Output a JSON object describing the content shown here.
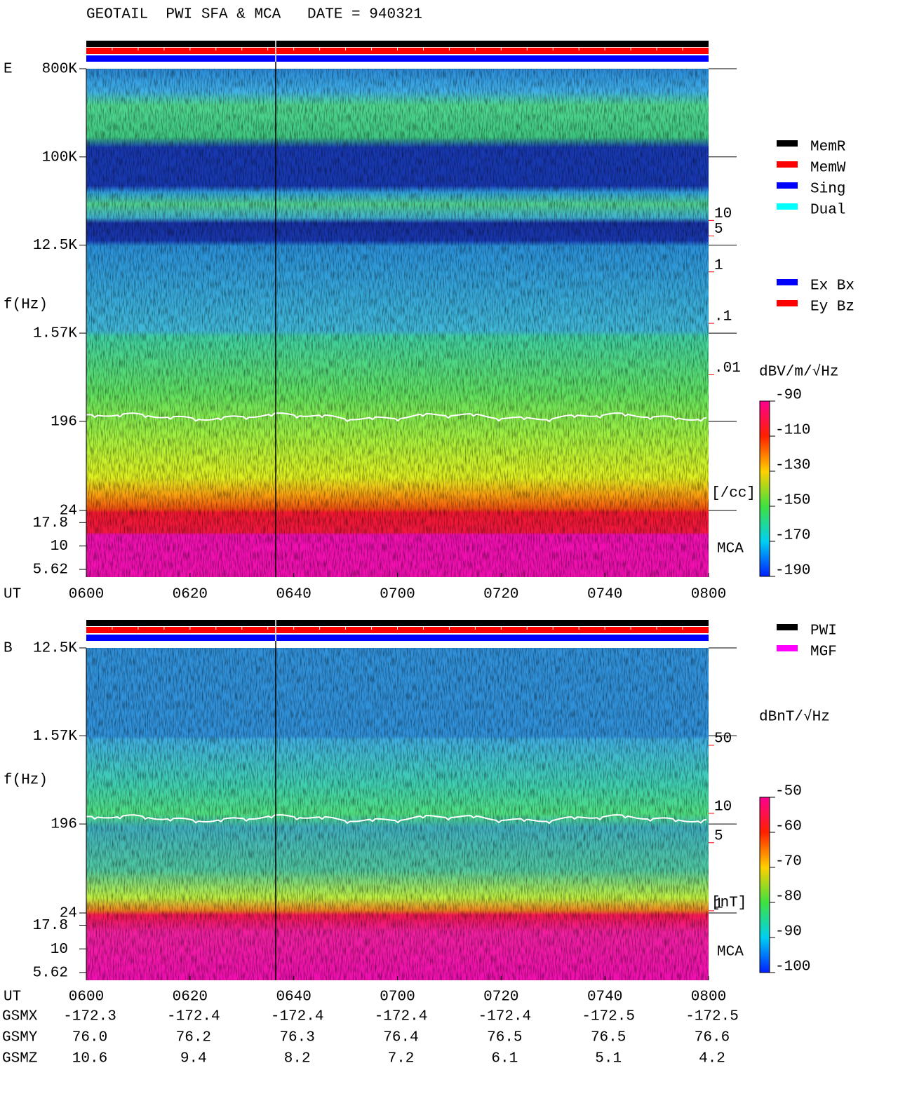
{
  "title": "GEOTAIL  PWI SFA & MCA   DATE = 940321",
  "chart_data": [
    {
      "type": "spectrogram",
      "panel": "E",
      "ylabel": "f(Hz)",
      "xlabel": "UT",
      "log_y": true,
      "ylim": [
        24,
        800000
      ],
      "yticks": [
        {
          "value": 800000,
          "label": "800K"
        },
        {
          "value": 100000,
          "label": "100K"
        },
        {
          "value": 12500,
          "label": "12.5K"
        },
        {
          "value": 1570,
          "label": "1.57K"
        },
        196,
        24
      ],
      "mca_label": "MCA",
      "mca_ylim": [
        4.65,
        24
      ],
      "mca_yticks": [
        17.8,
        10,
        5.62
      ],
      "y2lim": [
        2.3e-05,
        8900
      ],
      "y2ticks": [
        10,
        5,
        1,
        {
          "value": 0.1,
          "label": ".1"
        },
        {
          "value": 0.01,
          "label": ".01"
        }
      ],
      "y2label": "[/cc]",
      "y2color": "#ff0000",
      "xlim": [
        360,
        480
      ],
      "xticks": [
        {
          "value": 360,
          "label": "0600"
        },
        {
          "value": 380,
          "label": "0620"
        },
        {
          "value": 400,
          "label": "0640"
        },
        {
          "value": 420,
          "label": "0700"
        },
        {
          "value": 440,
          "label": "0720"
        },
        {
          "value": 460,
          "label": "0740"
        },
        {
          "value": 480,
          "label": "0800"
        }
      ],
      "clim": [
        -190,
        -90
      ],
      "cticks": [
        -90,
        -110,
        -130,
        -150,
        -170,
        -190
      ],
      "clabel": "dBV/m/√Hz",
      "legend": [
        [
          {
            "name": "MemR",
            "color": "#000000"
          },
          {
            "name": "MemW",
            "color": "#ff0000"
          },
          {
            "name": "Sing",
            "color": "#0000ff"
          },
          {
            "name": "Dual",
            "color": "#00ffff"
          }
        ],
        [
          {
            "name": "Ex Bx",
            "color": "#0000ff"
          },
          {
            "name": "Ey Bz",
            "color": "#ff0000"
          }
        ]
      ]
    },
    {
      "type": "spectrogram",
      "panel": "B",
      "ylabel": "f(Hz)",
      "xlabel": "UT",
      "log_y": true,
      "ylim": [
        24,
        12500
      ],
      "yticks": [
        {
          "value": 12500,
          "label": "12.5K"
        },
        {
          "value": 1570,
          "label": "1.57K"
        },
        196,
        24
      ],
      "mca_label": "MCA",
      "mca_ylim": [
        4.65,
        24
      ],
      "mca_yticks": [
        17.8,
        10,
        5.62
      ],
      "y2lim": [
        0.95,
        500
      ],
      "y2ticks": [
        50,
        10,
        5,
        1
      ],
      "y2label": "[nT]",
      "y2color": "#ff0000",
      "xlim": [
        360,
        480
      ],
      "xticks": [
        {
          "value": 360,
          "label": "0600"
        },
        {
          "value": 380,
          "label": "0620"
        },
        {
          "value": 400,
          "label": "0640"
        },
        {
          "value": 420,
          "label": "0700"
        },
        {
          "value": 440,
          "label": "0720"
        },
        {
          "value": 460,
          "label": "0740"
        },
        {
          "value": 480,
          "label": "0800"
        }
      ],
      "clim": [
        -100,
        -50
      ],
      "cticks": [
        -50,
        -60,
        -70,
        -80,
        -90,
        -100
      ],
      "clabel": "dBnT/√Hz",
      "legend": [
        [
          {
            "name": "PWI",
            "color": "#000000"
          },
          {
            "name": "MGF",
            "color": "#ff00ff"
          }
        ]
      ]
    }
  ],
  "orbit": {
    "rows": [
      {
        "label": "GSMX",
        "values": [
          "-172.3",
          "-172.4",
          "-172.4",
          "-172.4",
          "-172.4",
          "-172.5",
          "-172.5"
        ]
      },
      {
        "label": "GSMY",
        "values": [
          "76.0",
          "76.2",
          "76.3",
          "76.4",
          "76.5",
          "76.5",
          "76.6"
        ]
      },
      {
        "label": "GSMZ",
        "values": [
          "10.6",
          "9.4",
          "8.2",
          "7.2",
          "6.1",
          "5.1",
          "4.2"
        ]
      }
    ]
  }
}
